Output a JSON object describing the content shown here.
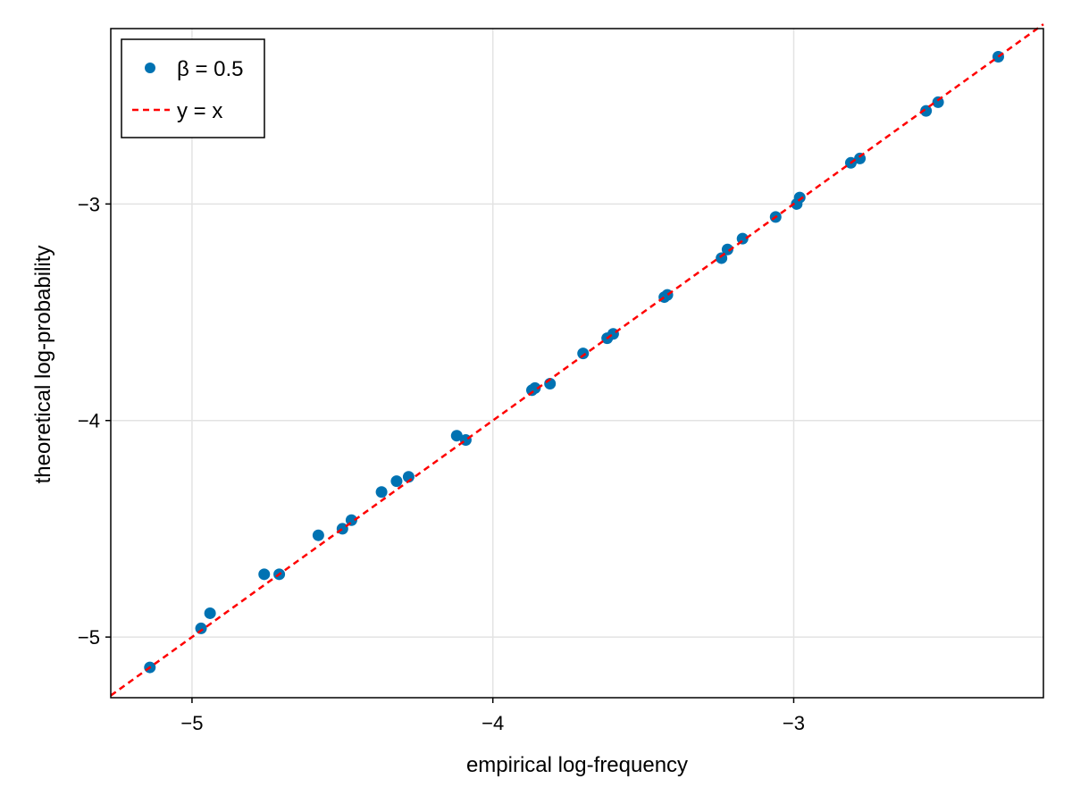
{
  "chart_data": {
    "type": "scatter",
    "title": "",
    "xlabel": "empirical log-frequency",
    "ylabel": "theoretical log-probability",
    "xlim": [
      -5.27,
      -2.17
    ],
    "ylim": [
      -5.28,
      -2.19
    ],
    "xticks": [
      -5,
      -4,
      -3
    ],
    "yticks": [
      -5,
      -4,
      -3
    ],
    "xtick_labels": [
      "−5",
      "−4",
      "−3"
    ],
    "ytick_labels": [
      "−5",
      "−4",
      "−3"
    ],
    "grid": true,
    "legend_position": "top-left",
    "series": [
      {
        "name": "β = 0.5",
        "kind": "points",
        "color": "#0072b2",
        "points": [
          [
            -5.14,
            -5.14
          ],
          [
            -4.97,
            -4.96
          ],
          [
            -4.94,
            -4.89
          ],
          [
            -4.76,
            -4.71
          ],
          [
            -4.71,
            -4.71
          ],
          [
            -4.58,
            -4.53
          ],
          [
            -4.5,
            -4.5
          ],
          [
            -4.47,
            -4.46
          ],
          [
            -4.37,
            -4.33
          ],
          [
            -4.32,
            -4.28
          ],
          [
            -4.28,
            -4.26
          ],
          [
            -4.12,
            -4.07
          ],
          [
            -4.09,
            -4.09
          ],
          [
            -3.87,
            -3.86
          ],
          [
            -3.86,
            -3.85
          ],
          [
            -3.81,
            -3.83
          ],
          [
            -3.7,
            -3.69
          ],
          [
            -3.62,
            -3.62
          ],
          [
            -3.6,
            -3.6
          ],
          [
            -3.43,
            -3.43
          ],
          [
            -3.42,
            -3.42
          ],
          [
            -3.24,
            -3.25
          ],
          [
            -3.22,
            -3.21
          ],
          [
            -3.17,
            -3.16
          ],
          [
            -3.06,
            -3.06
          ],
          [
            -2.99,
            -3.0
          ],
          [
            -2.98,
            -2.97
          ],
          [
            -2.81,
            -2.81
          ],
          [
            -2.78,
            -2.79
          ],
          [
            -2.56,
            -2.57
          ],
          [
            -2.52,
            -2.53
          ],
          [
            -2.32,
            -2.32
          ]
        ]
      },
      {
        "name": "y = x",
        "kind": "line",
        "color": "#ff0000",
        "points": [
          [
            -5.27,
            -5.27
          ],
          [
            -2.17,
            -2.17
          ]
        ]
      }
    ]
  }
}
